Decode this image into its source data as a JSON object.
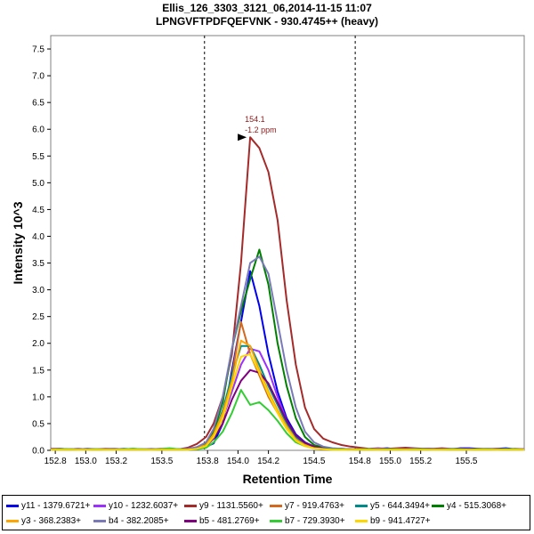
{
  "chart_data": {
    "type": "line",
    "title": "Ellis_126_3303_3121_06,2014-11-15 11:07",
    "subtitle": "LPNGVFTPDFQEFVNK - 930.4745++ (heavy)",
    "xlabel": "Retention Time",
    "ylabel": "Intensity 10^3",
    "xlim": [
      152.77,
      155.88
    ],
    "ylim": [
      0,
      7.75
    ],
    "xticks": [
      "152.8",
      "153.0",
      "153.2",
      "153.5",
      "153.8",
      "154.0",
      "154.2",
      "154.5",
      "154.8",
      "155.0",
      "155.2",
      "155.5"
    ],
    "xtick_values": [
      152.8,
      153.0,
      153.2,
      153.5,
      153.8,
      154.0,
      154.2,
      154.5,
      154.8,
      155.0,
      155.2,
      155.5
    ],
    "yticks": [
      "0.0",
      "0.5",
      "1.0",
      "1.5",
      "2.0",
      "2.5",
      "3.0",
      "3.5",
      "4.0",
      "4.5",
      "5.0",
      "5.5",
      "6.0",
      "6.5",
      "7.0",
      "7.5"
    ],
    "ytick_values": [
      0,
      0.5,
      1,
      1.5,
      2,
      2.5,
      3,
      3.5,
      4,
      4.5,
      5,
      5.5,
      6,
      6.5,
      7,
      7.5
    ],
    "boundaries": [
      153.78,
      154.77
    ],
    "peak_annotation": {
      "x": 154.08,
      "y": 5.85,
      "line1": "154.1",
      "line2": "-1.2 ppm",
      "color": "#8b1a1a"
    },
    "x": [
      152.77,
      152.83,
      152.89,
      152.95,
      153.01,
      153.07,
      153.13,
      153.19,
      153.25,
      153.31,
      153.37,
      153.43,
      153.49,
      153.55,
      153.61,
      153.67,
      153.73,
      153.79,
      153.84,
      153.9,
      153.96,
      154.02,
      154.08,
      154.14,
      154.2,
      154.26,
      154.32,
      154.38,
      154.44,
      154.5,
      154.56,
      154.62,
      154.68,
      154.74,
      154.8,
      154.86,
      154.92,
      154.98,
      155.04,
      155.1,
      155.16,
      155.22,
      155.28,
      155.34,
      155.4,
      155.46,
      155.52,
      155.58,
      155.64,
      155.7,
      155.76,
      155.82,
      155.88
    ],
    "series": [
      {
        "name": "y11 - 1379.6721+",
        "color": "#0000ee",
        "values": [
          0.02,
          0.03,
          0.02,
          0.02,
          0.03,
          0.02,
          0.02,
          0.02,
          0.03,
          0.02,
          0.01,
          0.02,
          0.02,
          0.02,
          0.02,
          0.03,
          0.03,
          0.07,
          0.13,
          0.5,
          1.5,
          2.4,
          3.35,
          2.7,
          1.8,
          1.1,
          0.6,
          0.3,
          0.15,
          0.07,
          0.04,
          0.03,
          0.03,
          0.02,
          0.01,
          0.02,
          0.03,
          0.04,
          0.02,
          0.02,
          0.02,
          0.03,
          0.03,
          0.02,
          0.02,
          0.04,
          0.04,
          0.03,
          0.02,
          0.03,
          0.04,
          0.02,
          0.02
        ]
      },
      {
        "name": "y10 - 1232.6037+",
        "color": "#9b30ff",
        "values": [
          0.01,
          0.01,
          0.02,
          0.02,
          0.01,
          0.01,
          0.02,
          0.01,
          0.01,
          0.01,
          0.02,
          0.01,
          0.01,
          0.01,
          0.01,
          0.02,
          0.05,
          0.1,
          0.25,
          0.6,
          1.1,
          1.6,
          1.9,
          1.85,
          1.5,
          1.0,
          0.55,
          0.25,
          0.12,
          0.06,
          0.04,
          0.03,
          0.02,
          0.01,
          0.01,
          0.02,
          0.02,
          0.02,
          0.01,
          0.01,
          0.02,
          0.02,
          0.01,
          0.01,
          0.01,
          0.02,
          0.02,
          0.02,
          0.02,
          0.01,
          0.02,
          0.02,
          0.01
        ]
      },
      {
        "name": "y9 - 1131.5560+",
        "color": "#a52a2a",
        "values": [
          0.03,
          0.03,
          0.02,
          0.03,
          0.02,
          0.02,
          0.03,
          0.03,
          0.02,
          0.03,
          0.02,
          0.02,
          0.03,
          0.03,
          0.02,
          0.05,
          0.12,
          0.25,
          0.5,
          1.0,
          1.8,
          3.5,
          5.85,
          5.65,
          5.2,
          4.3,
          2.8,
          1.6,
          0.8,
          0.4,
          0.22,
          0.15,
          0.1,
          0.07,
          0.05,
          0.03,
          0.04,
          0.03,
          0.04,
          0.05,
          0.04,
          0.03,
          0.03,
          0.04,
          0.03,
          0.03,
          0.02,
          0.03,
          0.03,
          0.03,
          0.02,
          0.03,
          0.02
        ]
      },
      {
        "name": "y7 - 919.4763+",
        "color": "#d2691e",
        "values": [
          0.01,
          0.02,
          0.01,
          0.02,
          0.02,
          0.01,
          0.01,
          0.02,
          0.02,
          0.01,
          0.01,
          0.02,
          0.01,
          0.02,
          0.02,
          0.02,
          0.06,
          0.12,
          0.3,
          0.7,
          1.4,
          2.4,
          1.8,
          1.4,
          1.0,
          0.7,
          0.4,
          0.2,
          0.1,
          0.05,
          0.03,
          0.02,
          0.02,
          0.01,
          0.02,
          0.02,
          0.01,
          0.01,
          0.02,
          0.02,
          0.01,
          0.01,
          0.02,
          0.01,
          0.01,
          0.02,
          0.02,
          0.01,
          0.01,
          0.02,
          0.02,
          0.01,
          0.01
        ]
      },
      {
        "name": "y5 - 644.3494+",
        "color": "#008b8b",
        "values": [
          0.01,
          0.01,
          0.01,
          0.01,
          0.02,
          0.01,
          0.01,
          0.01,
          0.01,
          0.02,
          0.01,
          0.01,
          0.01,
          0.01,
          0.01,
          0.01,
          0.04,
          0.1,
          0.3,
          0.75,
          1.4,
          1.95,
          1.95,
          1.6,
          1.2,
          0.85,
          0.5,
          0.25,
          0.12,
          0.06,
          0.03,
          0.02,
          0.02,
          0.01,
          0.01,
          0.01,
          0.01,
          0.02,
          0.01,
          0.01,
          0.01,
          0.01,
          0.01,
          0.02,
          0.01,
          0.01,
          0.01,
          0.01,
          0.01,
          0.01,
          0.01,
          0.01,
          0.01
        ]
      },
      {
        "name": "y4 - 515.3068+",
        "color": "#008000",
        "values": [
          0.01,
          0.02,
          0.02,
          0.01,
          0.02,
          0.02,
          0.01,
          0.02,
          0.02,
          0.02,
          0.01,
          0.02,
          0.02,
          0.01,
          0.02,
          0.02,
          0.05,
          0.12,
          0.35,
          0.9,
          1.9,
          2.6,
          3.2,
          3.75,
          3.1,
          2.0,
          1.2,
          0.6,
          0.25,
          0.1,
          0.05,
          0.03,
          0.02,
          0.02,
          0.01,
          0.02,
          0.02,
          0.02,
          0.01,
          0.02,
          0.02,
          0.01,
          0.02,
          0.02,
          0.02,
          0.01,
          0.02,
          0.02,
          0.01,
          0.02,
          0.02,
          0.02,
          0.01
        ]
      },
      {
        "name": "y3 - 368.2383+",
        "color": "#ffa500",
        "values": [
          0.01,
          0.01,
          0.02,
          0.01,
          0.01,
          0.02,
          0.01,
          0.01,
          0.01,
          0.02,
          0.01,
          0.01,
          0.02,
          0.01,
          0.01,
          0.02,
          0.04,
          0.1,
          0.3,
          0.7,
          1.3,
          2.05,
          1.95,
          1.5,
          1.1,
          0.75,
          0.45,
          0.2,
          0.1,
          0.05,
          0.03,
          0.02,
          0.01,
          0.01,
          0.02,
          0.01,
          0.01,
          0.01,
          0.02,
          0.01,
          0.01,
          0.01,
          0.02,
          0.01,
          0.01,
          0.01,
          0.02,
          0.01,
          0.01,
          0.01,
          0.02,
          0.01,
          0.01
        ]
      },
      {
        "name": "b4 - 382.2085+",
        "color": "#7a7ab8",
        "values": [
          0.02,
          0.02,
          0.02,
          0.03,
          0.02,
          0.02,
          0.02,
          0.03,
          0.02,
          0.02,
          0.02,
          0.03,
          0.02,
          0.02,
          0.02,
          0.03,
          0.06,
          0.15,
          0.4,
          1.0,
          1.9,
          2.7,
          3.5,
          3.62,
          3.3,
          2.4,
          1.5,
          0.8,
          0.35,
          0.15,
          0.07,
          0.04,
          0.03,
          0.02,
          0.02,
          0.02,
          0.03,
          0.02,
          0.02,
          0.02,
          0.03,
          0.02,
          0.02,
          0.02,
          0.03,
          0.02,
          0.02,
          0.02,
          0.03,
          0.02,
          0.02,
          0.02,
          0.02
        ]
      },
      {
        "name": "b5 - 481.2769+",
        "color": "#800080",
        "values": [
          0.01,
          0.01,
          0.01,
          0.01,
          0.01,
          0.01,
          0.01,
          0.01,
          0.01,
          0.01,
          0.01,
          0.01,
          0.01,
          0.01,
          0.01,
          0.01,
          0.03,
          0.08,
          0.22,
          0.5,
          0.95,
          1.3,
          1.5,
          1.45,
          1.25,
          0.9,
          0.55,
          0.28,
          0.14,
          0.07,
          0.04,
          0.02,
          0.02,
          0.01,
          0.01,
          0.01,
          0.01,
          0.01,
          0.01,
          0.01,
          0.01,
          0.01,
          0.01,
          0.01,
          0.01,
          0.01,
          0.01,
          0.01,
          0.01,
          0.01,
          0.01,
          0.01,
          0.01
        ]
      },
      {
        "name": "b7 - 729.3930+",
        "color": "#32cd32",
        "values": [
          0.01,
          0.02,
          0.02,
          0.01,
          0.01,
          0.02,
          0.01,
          0.01,
          0.02,
          0.03,
          0.02,
          0.01,
          0.02,
          0.04,
          0.02,
          0.01,
          0.02,
          0.05,
          0.15,
          0.35,
          0.7,
          1.13,
          0.85,
          0.9,
          0.75,
          0.55,
          0.32,
          0.15,
          0.08,
          0.04,
          0.03,
          0.02,
          0.02,
          0.01,
          0.02,
          0.02,
          0.01,
          0.02,
          0.02,
          0.01,
          0.02,
          0.02,
          0.01,
          0.01,
          0.02,
          0.02,
          0.01,
          0.02,
          0.02,
          0.01,
          0.02,
          0.02,
          0.01
        ]
      },
      {
        "name": "b9 - 941.4727+",
        "color": "#ffd700",
        "values": [
          0.01,
          0.01,
          0.01,
          0.01,
          0.01,
          0.01,
          0.01,
          0.01,
          0.01,
          0.01,
          0.01,
          0.01,
          0.01,
          0.01,
          0.01,
          0.01,
          0.03,
          0.08,
          0.25,
          0.6,
          1.2,
          1.75,
          1.8,
          1.45,
          1.05,
          0.7,
          0.4,
          0.18,
          0.08,
          0.04,
          0.02,
          0.01,
          0.01,
          0.01,
          0.01,
          0.01,
          0.01,
          0.01,
          0.01,
          0.01,
          0.01,
          0.01,
          0.01,
          0.01,
          0.01,
          0.01,
          0.01,
          0.01,
          0.01,
          0.01,
          0.01,
          0.01,
          0.01
        ]
      }
    ]
  }
}
